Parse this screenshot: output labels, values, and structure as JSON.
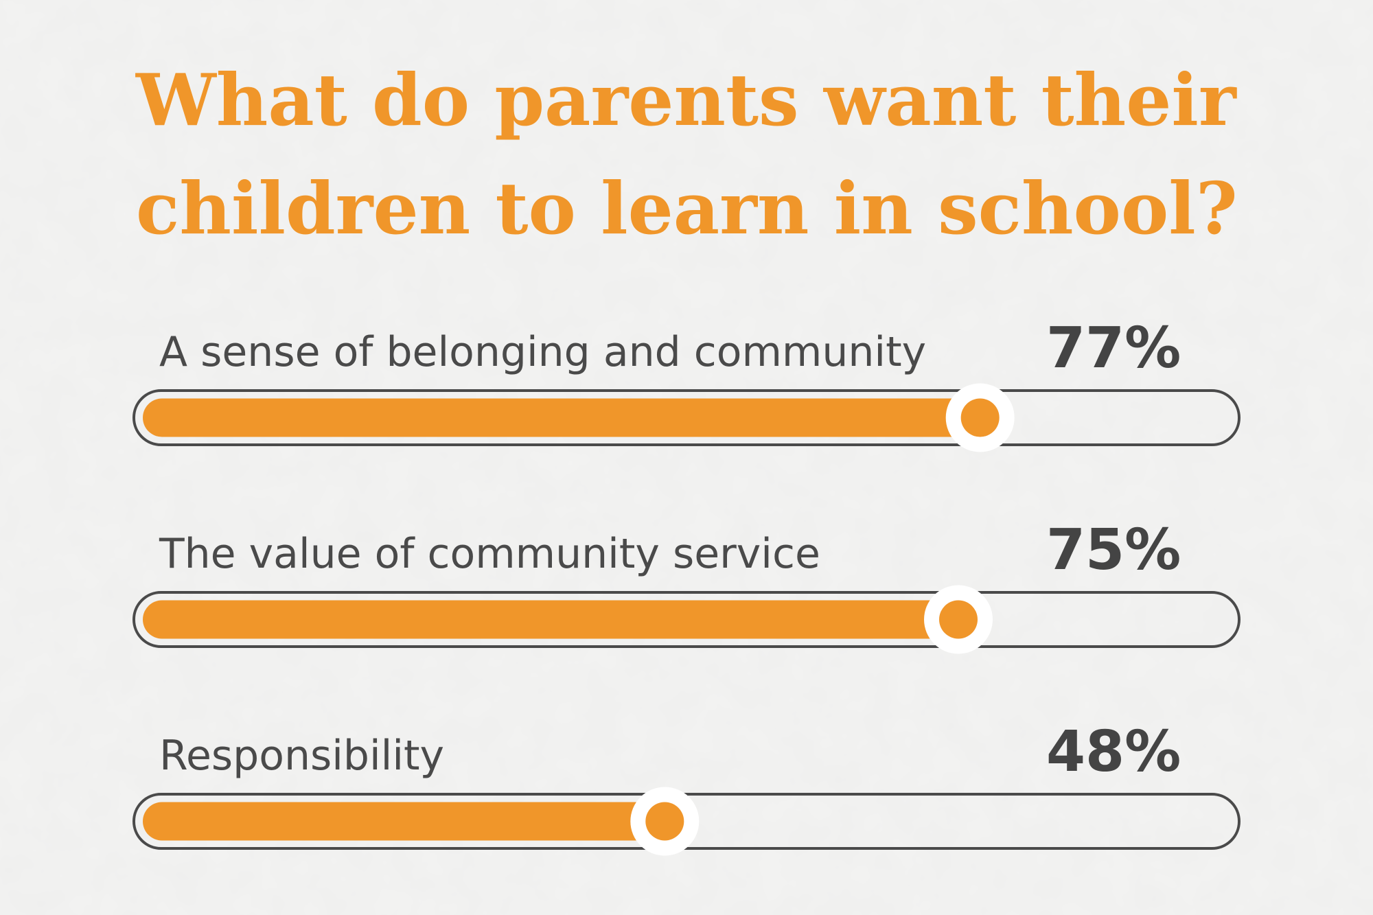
{
  "chart_data": {
    "type": "progress-bar",
    "title_lines": [
      "What do parents want their",
      "children to learn in school?"
    ],
    "categories": [
      "A sense of belonging and community",
      "The value of community service",
      "Responsibility"
    ],
    "values": [
      77,
      75,
      48
    ],
    "value_labels": [
      "77%",
      "75%",
      "48%"
    ],
    "xlim": [
      0,
      100
    ],
    "color": "#f0962a"
  }
}
